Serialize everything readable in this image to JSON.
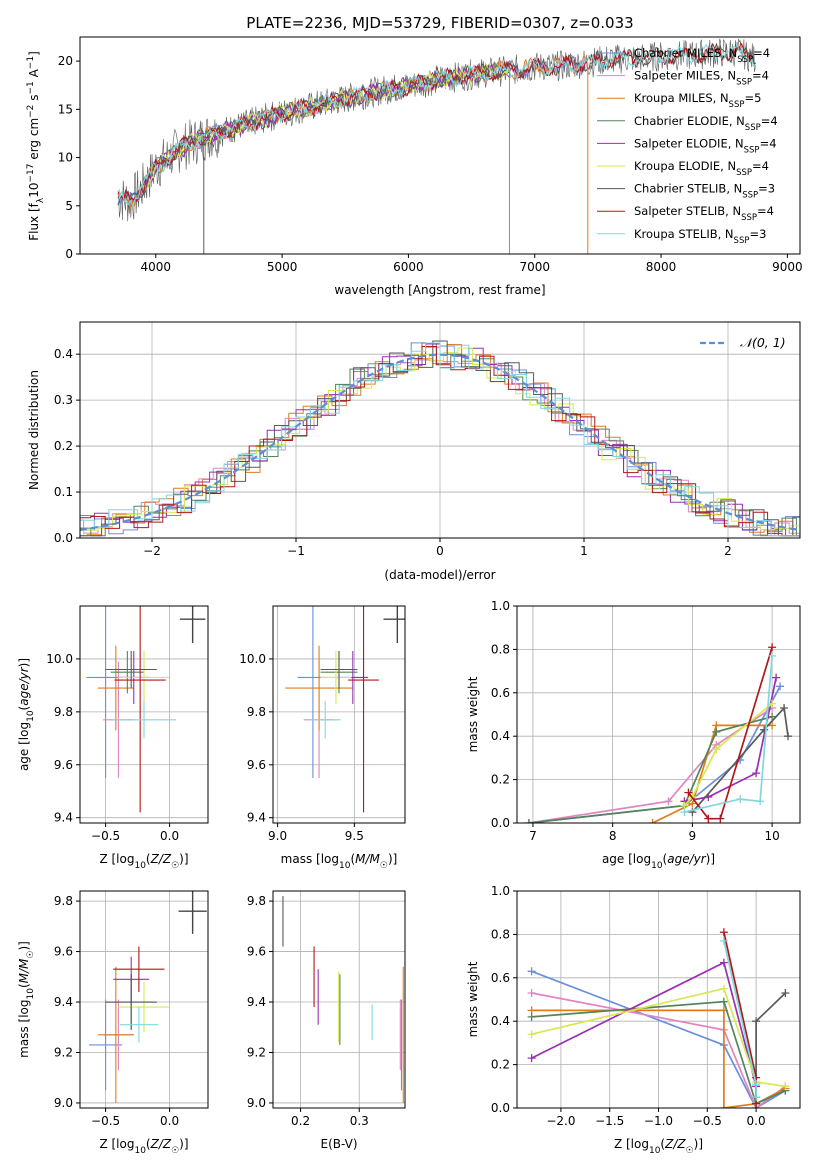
{
  "figure": {
    "title": "PLATE=2236, MJD=53729, FIBERID=0307, z=0.033"
  },
  "colors": {
    "Chabrier MILES": "#6a8fdc",
    "Salpeter MILES": "#e085c2",
    "Kroupa MILES": "#e07b1e",
    "Chabrier ELODIE": "#55845a",
    "Salpeter ELODIE": "#9a2fb2",
    "Kroupa ELODIE": "#d6e94f",
    "Chabrier STELIB": "#5a5a5a",
    "Salpeter STELIB": "#b01818",
    "Kroupa STELIB": "#7fd8de"
  },
  "chart_data": [
    {
      "id": "spectrum",
      "type": "line",
      "title": "PLATE=2236, MJD=53729, FIBERID=0307, z=0.033",
      "xlabel": "wavelength [Angstrom, rest frame]",
      "ylabel": "Flux [f_λ 10^-17 erg cm^-2 s^-1 A^-1]",
      "xlim": [
        3400,
        9100
      ],
      "ylim": [
        0,
        22.5
      ],
      "xticks": [
        4000,
        5000,
        6000,
        7000,
        8000,
        9000
      ],
      "yticks": [
        0,
        5,
        10,
        15,
        20
      ],
      "legend": "upper right",
      "grid": false,
      "series": [
        {
          "name": "Chabrier MILES, N_SSP=4",
          "label": "Chabrier MILES, N",
          "sub": "SSP",
          "tail": "=4",
          "color": "#6a8fdc",
          "x": [
            3700,
            7400
          ],
          "y": [
            6.0,
            20.0
          ]
        },
        {
          "name": "Salpeter MILES, N_SSP=4",
          "label": "Salpeter MILES, N",
          "sub": "SSP",
          "tail": "=4",
          "color": "#e085c2",
          "x": [
            3700,
            7400
          ],
          "y": [
            6.0,
            20.0
          ]
        },
        {
          "name": "Kroupa MILES, N_SSP=5",
          "label": "Kroupa MILES, N",
          "sub": "SSP",
          "tail": "=5",
          "color": "#e07b1e",
          "x": [
            3700,
            7400
          ],
          "y": [
            6.0,
            20.0
          ]
        },
        {
          "name": "Chabrier ELODIE, N_SSP=4",
          "label": "Chabrier ELODIE, N",
          "sub": "SSP",
          "tail": "=4",
          "color": "#55845a",
          "x": [
            3900,
            6800
          ],
          "y": [
            7.0,
            19.0
          ]
        },
        {
          "name": "Salpeter ELODIE, N_SSP=4",
          "label": "Salpeter ELODIE, N",
          "sub": "SSP",
          "tail": "=4",
          "color": "#9a2fb2",
          "x": [
            3900,
            6800
          ],
          "y": [
            7.0,
            19.0
          ]
        },
        {
          "name": "Kroupa ELODIE, N_SSP=4",
          "label": "Kroupa ELODIE, N",
          "sub": "SSP",
          "tail": "=4",
          "color": "#d6e94f",
          "x": [
            3900,
            6800
          ],
          "y": [
            7.0,
            19.0
          ]
        },
        {
          "name": "Chabrier STELIB, N_SSP=3",
          "label": "Chabrier STELIB, N",
          "sub": "SSP",
          "tail": "=3",
          "color": "#5a5a5a",
          "x": [
            3700,
            8750
          ],
          "y": [
            6.0,
            20.5
          ]
        },
        {
          "name": "Salpeter STELIB, N_SSP=4",
          "label": "Salpeter STELIB, N",
          "sub": "SSP",
          "tail": "=4",
          "color": "#b01818",
          "x": [
            3700,
            8750
          ],
          "y": [
            6.0,
            20.5
          ]
        },
        {
          "name": "Kroupa STELIB, N_SSP=3",
          "label": "Kroupa STELIB, N",
          "sub": "SSP",
          "tail": "=3",
          "color": "#7fd8de",
          "x": [
            3700,
            8750
          ],
          "y": [
            6.0,
            20.5
          ]
        }
      ],
      "data_note_x": [
        3700,
        3800,
        3900,
        4000,
        4200,
        4400,
        4600,
        4800,
        5000,
        5200,
        5400,
        5600,
        5800,
        6000,
        6200,
        6400,
        6600,
        6800,
        7000,
        7200,
        7400,
        7600,
        7800,
        8000,
        8200,
        8400,
        8600,
        8750
      ],
      "data_y": [
        5.8,
        5.5,
        7.0,
        9.0,
        11.0,
        12.2,
        13.0,
        13.8,
        14.6,
        15.2,
        15.8,
        16.4,
        17.0,
        17.4,
        18.0,
        18.4,
        18.8,
        19.0,
        19.4,
        19.5,
        19.8,
        20.2,
        20.3,
        20.5,
        20.6,
        20.8,
        21.0,
        20.2
      ]
    },
    {
      "id": "residuals",
      "type": "line",
      "xlabel": "(data-model)/error",
      "ylabel": "Normed distribution",
      "xlim": [
        -2.5,
        2.5
      ],
      "ylim": [
        0,
        0.47
      ],
      "xticks": [
        -2,
        -1,
        0,
        1,
        2
      ],
      "yticks": [
        0.0,
        0.1,
        0.2,
        0.3,
        0.4
      ],
      "grid": true,
      "legend": "upper right",
      "reference": {
        "name": "N(0,1)",
        "color": "#5b8fd6",
        "mu": 0,
        "sigma": 1
      }
    },
    {
      "id": "age-vs-Z",
      "type": "scatter",
      "xlabel": "Z [log10(Z/Z☉)]",
      "ylabel": "age  [log10(age/yr)]",
      "xlim": [
        -0.7,
        0.3
      ],
      "ylim": [
        9.38,
        10.2
      ],
      "xticks": [
        -0.5,
        0.0
      ],
      "yticks": [
        9.4,
        9.6,
        9.8,
        10.0
      ],
      "grid": true,
      "points": [
        {
          "series": "Chabrier MILES",
          "x": -0.5,
          "y": 9.93,
          "xerr": 0.15,
          "yerr": 0.38
        },
        {
          "series": "Salpeter MILES",
          "x": -0.4,
          "y": 9.77,
          "xerr": 0.12,
          "yerr": 0.22
        },
        {
          "series": "Kroupa MILES",
          "x": -0.42,
          "y": 9.89,
          "xerr": 0.14,
          "yerr": 0.16
        },
        {
          "series": "Chabrier ELODIE",
          "x": -0.33,
          "y": 9.95,
          "xerr": 0.13,
          "yerr": 0.08
        },
        {
          "series": "Salpeter ELODIE",
          "x": -0.28,
          "y": 9.93,
          "xerr": 0.12,
          "yerr": 0.1
        },
        {
          "series": "Kroupa ELODIE",
          "x": -0.2,
          "y": 9.93,
          "xerr": 0.2,
          "yerr": 0.1
        },
        {
          "series": "Chabrier STELIB",
          "x": -0.3,
          "y": 9.96,
          "xerr": 0.2,
          "yerr": 0.07
        },
        {
          "series": "Salpeter STELIB",
          "x": -0.23,
          "y": 9.92,
          "xerr": 0.2,
          "yerr": 0.5
        },
        {
          "series": "Kroupa STELIB",
          "x": -0.2,
          "y": 9.77,
          "xerr": 0.25,
          "yerr": 0.07
        },
        {
          "series": "typical error",
          "x": 0.18,
          "y": 10.15,
          "xerr": 0.1,
          "yerr": 0.09
        }
      ]
    },
    {
      "id": "age-vs-mass",
      "type": "scatter",
      "xlabel": "mass [log10(M/M☉)]",
      "ylabel": "",
      "xlim": [
        8.97,
        9.83
      ],
      "ylim": [
        9.38,
        10.2
      ],
      "xticks": [
        9.0,
        9.5
      ],
      "yticks": [
        9.4,
        9.6,
        9.8,
        10.0
      ],
      "grid": true,
      "points": [
        {
          "series": "Chabrier MILES",
          "x": 9.23,
          "y": 9.93,
          "xerr": 0.1,
          "yerr": 0.38
        },
        {
          "series": "Salpeter MILES",
          "x": 9.27,
          "y": 9.77,
          "xerr": 0.1,
          "yerr": 0.22
        },
        {
          "series": "Kroupa MILES",
          "x": 9.27,
          "y": 9.89,
          "xerr": 0.22,
          "yerr": 0.16
        },
        {
          "series": "Chabrier ELODIE",
          "x": 9.4,
          "y": 9.95,
          "xerr": 0.12,
          "yerr": 0.08
        },
        {
          "series": "Salpeter ELODIE",
          "x": 9.49,
          "y": 9.93,
          "xerr": 0.1,
          "yerr": 0.1
        },
        {
          "series": "Kroupa ELODIE",
          "x": 9.38,
          "y": 9.93,
          "xerr": 0.1,
          "yerr": 0.1
        },
        {
          "series": "Chabrier STELIB",
          "x": 9.4,
          "y": 9.96,
          "xerr": 0.12,
          "yerr": 0.07
        },
        {
          "series": "Salpeter STELIB",
          "x": 9.56,
          "y": 9.92,
          "xerr": 0.1,
          "yerr": 0.5
        },
        {
          "series": "Kroupa STELIB",
          "x": 9.31,
          "y": 9.77,
          "xerr": 0.1,
          "yerr": 0.07
        },
        {
          "series": "typical error",
          "x": 9.78,
          "y": 10.15,
          "xerr": 0.09,
          "yerr": 0.09
        }
      ]
    },
    {
      "id": "mass-weight-vs-age",
      "type": "line",
      "xlabel": "age  [log10(age/yr)]",
      "ylabel": "mass weight",
      "xlim": [
        6.8,
        10.35
      ],
      "ylim": [
        0,
        1.0
      ],
      "xticks": [
        7,
        8,
        9,
        10
      ],
      "yticks": [
        0.0,
        0.2,
        0.4,
        0.6,
        0.8,
        1.0
      ],
      "grid": true,
      "series": [
        {
          "name": "Chabrier MILES",
          "x": [
            6.95,
            8.9,
            9.6,
            10.1
          ],
          "y": [
            0.0,
            0.08,
            0.29,
            0.63
          ]
        },
        {
          "name": "Salpeter MILES",
          "x": [
            6.95,
            8.7,
            9.3,
            10.0
          ],
          "y": [
            0.0,
            0.1,
            0.36,
            0.53
          ]
        },
        {
          "name": "Kroupa MILES",
          "x": [
            8.5,
            9.0,
            9.3,
            10.0
          ],
          "y": [
            0.0,
            0.09,
            0.45,
            0.45
          ]
        },
        {
          "name": "Chabrier ELODIE",
          "x": [
            6.95,
            8.9,
            9.3,
            10.0
          ],
          "y": [
            0.0,
            0.08,
            0.42,
            0.49
          ]
        },
        {
          "name": "Salpeter ELODIE",
          "x": [
            8.9,
            9.2,
            9.8,
            10.05
          ],
          "y": [
            0.1,
            0.12,
            0.23,
            0.67
          ]
        },
        {
          "name": "Kroupa ELODIE",
          "x": [
            8.9,
            9.0,
            9.3,
            10.0
          ],
          "y": [
            0.08,
            0.12,
            0.34,
            0.55
          ]
        },
        {
          "name": "Chabrier STELIB",
          "x": [
            9.0,
            9.9,
            10.15,
            10.2
          ],
          "y": [
            0.05,
            0.43,
            0.53,
            0.4
          ]
        },
        {
          "name": "Salpeter STELIB",
          "x": [
            8.95,
            9.2,
            9.35,
            10.0
          ],
          "y": [
            0.14,
            0.02,
            0.02,
            0.81
          ]
        },
        {
          "name": "Kroupa STELIB",
          "x": [
            8.9,
            9.6,
            9.85,
            10.0
          ],
          "y": [
            0.05,
            0.11,
            0.1,
            0.77
          ]
        }
      ]
    },
    {
      "id": "mass-vs-Z",
      "type": "scatter",
      "xlabel": "Z [log10(Z/Z☉)]",
      "ylabel": "mass [log10(M/M☉)]",
      "xlim": [
        -0.7,
        0.3
      ],
      "ylim": [
        8.98,
        9.84
      ],
      "xticks": [
        -0.5,
        0.0
      ],
      "yticks": [
        9.0,
        9.2,
        9.4,
        9.6,
        9.8
      ],
      "grid": true,
      "points": [
        {
          "series": "Chabrier MILES",
          "x": -0.5,
          "y": 9.23,
          "xerr": 0.13,
          "yerr": 0.18
        },
        {
          "series": "Salpeter MILES",
          "x": -0.4,
          "y": 9.27,
          "xerr": 0.12,
          "yerr": 0.14
        },
        {
          "series": "Kroupa MILES",
          "x": -0.42,
          "y": 9.27,
          "xerr": 0.14,
          "yerr": 0.27
        },
        {
          "series": "Chabrier ELODIE",
          "x": -0.3,
          "y": 9.4,
          "xerr": 0.2,
          "yerr": 0.11
        },
        {
          "series": "Salpeter ELODIE",
          "x": -0.3,
          "y": 9.49,
          "xerr": 0.14,
          "yerr": 0.09
        },
        {
          "series": "Kroupa ELODIE",
          "x": -0.2,
          "y": 9.38,
          "xerr": 0.2,
          "yerr": 0.1
        },
        {
          "series": "Chabrier STELIB",
          "x": -0.3,
          "y": 9.4,
          "xerr": 0.2,
          "yerr": 0.11
        },
        {
          "series": "Salpeter STELIB",
          "x": -0.24,
          "y": 9.53,
          "xerr": 0.2,
          "yerr": 0.09
        },
        {
          "series": "Kroupa STELIB",
          "x": -0.24,
          "y": 9.31,
          "xerr": 0.15,
          "yerr": 0.07
        },
        {
          "series": "typical error",
          "x": 0.18,
          "y": 9.76,
          "xerr": 0.11,
          "yerr": 0.09
        }
      ]
    },
    {
      "id": "mass-vs-ebv",
      "type": "scatter",
      "xlabel": "E(B-V)",
      "ylabel": "",
      "xlim": [
        0.153,
        0.378
      ],
      "ylim": [
        8.98,
        9.84
      ],
      "xticks": [
        0.2,
        0.3
      ],
      "yticks": [
        9.0,
        9.2,
        9.4,
        9.6,
        9.8
      ],
      "grid": true,
      "points": [
        {
          "series": "Chabrier MILES",
          "x": 0.372,
          "y": 9.23,
          "yerr": 0.18
        },
        {
          "series": "Salpeter MILES",
          "x": 0.37,
          "y": 9.27,
          "yerr": 0.14
        },
        {
          "series": "Kroupa MILES",
          "x": 0.375,
          "y": 9.27,
          "yerr": 0.27
        },
        {
          "series": "Chabrier ELODIE",
          "x": 0.267,
          "y": 9.37,
          "yerr": 0.14
        },
        {
          "series": "Salpeter ELODIE",
          "x": 0.23,
          "y": 9.42,
          "yerr": 0.11
        },
        {
          "series": "Kroupa ELODIE",
          "x": 0.265,
          "y": 9.38,
          "yerr": 0.14
        },
        {
          "series": "Chabrier STELIB",
          "x": 0.17,
          "y": 9.72,
          "yerr": 0.1
        },
        {
          "series": "Salpeter STELIB",
          "x": 0.223,
          "y": 9.5,
          "yerr": 0.12
        },
        {
          "series": "Kroupa STELIB",
          "x": 0.322,
          "y": 9.32,
          "yerr": 0.07
        }
      ]
    },
    {
      "id": "mass-weight-vs-Z",
      "type": "line",
      "xlabel": "Z [log10(Z/Z☉)]",
      "ylabel": "mass weight",
      "xlim": [
        -2.45,
        0.45
      ],
      "ylim": [
        0,
        1.0
      ],
      "xticks": [
        -2.0,
        -1.5,
        -1.0,
        -0.5,
        0.0
      ],
      "yticks": [
        0.0,
        0.2,
        0.4,
        0.6,
        0.8,
        1.0
      ],
      "grid": true,
      "series": [
        {
          "name": "Chabrier MILES",
          "x": [
            -2.3,
            -0.33,
            0.0,
            0.3
          ],
          "y": [
            0.63,
            0.29,
            0.0,
            0.08
          ]
        },
        {
          "name": "Salpeter MILES",
          "x": [
            -2.3,
            -0.33,
            0.0,
            0.3
          ],
          "y": [
            0.53,
            0.36,
            0.0,
            0.1
          ]
        },
        {
          "name": "Kroupa MILES",
          "x": [
            -2.3,
            -0.33,
            -0.33,
            0.0,
            0.3
          ],
          "y": [
            0.45,
            0.45,
            0.0,
            0.02,
            0.09
          ]
        },
        {
          "name": "Chabrier ELODIE",
          "x": [
            -2.3,
            -0.33,
            0.0,
            0.3
          ],
          "y": [
            0.42,
            0.49,
            0.02,
            0.08
          ]
        },
        {
          "name": "Salpeter ELODIE",
          "x": [
            -2.3,
            -0.33,
            0.0
          ],
          "y": [
            0.23,
            0.67,
            0.1
          ]
        },
        {
          "name": "Kroupa ELODIE",
          "x": [
            -2.3,
            -0.33,
            0.0,
            0.3
          ],
          "y": [
            0.34,
            0.55,
            0.12,
            0.1
          ]
        },
        {
          "name": "Chabrier STELIB",
          "x": [
            0.0,
            0.0,
            0.3
          ],
          "y": [
            0.05,
            0.4,
            0.53
          ]
        },
        {
          "name": "Salpeter STELIB",
          "x": [
            -0.33,
            0.0,
            0.0
          ],
          "y": [
            0.81,
            0.14,
            0.02
          ]
        },
        {
          "name": "Kroupa STELIB",
          "x": [
            -0.33,
            0.0,
            0.0
          ],
          "y": [
            0.77,
            0.11,
            0.05
          ]
        }
      ]
    }
  ]
}
